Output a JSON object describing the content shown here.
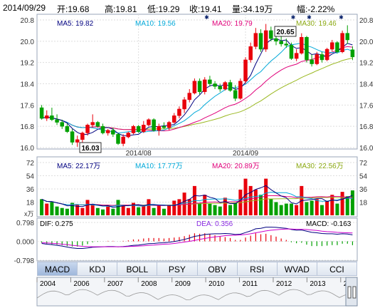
{
  "header": {
    "date": "2014/09/29",
    "open": "开:19.68",
    "high": "高:19.81",
    "low": "低:19.29",
    "close": "收:19.41",
    "volume": "量:34.19万",
    "change": "幅:-2.22%"
  },
  "ma_legend": {
    "ma5": "MA5: 19.82",
    "ma10": "MA10: 19.56",
    "ma20": "MA20: 19.79",
    "ma30": "MA30: 19.46"
  },
  "vol_legend": {
    "ma5": "MA5: 22.17万",
    "ma10": "MA10: 17.77万",
    "ma20": "MA20: 20.89万",
    "ma30": "MA30: 22.56万"
  },
  "macd_legend": {
    "dif": "DIF: 0.275",
    "dea": "DEA: 0.356",
    "macd": "MACD: -0.163"
  },
  "vol_unit": "x万",
  "annotations": {
    "high": "20.65",
    "low": "16.03"
  },
  "tabs": [
    "MACD",
    "KDJ",
    "BOLL",
    "PSY",
    "OBV",
    "RSI",
    "WVAD",
    "CCI"
  ],
  "active_tab": "MACD",
  "timeline_years": [
    "2004",
    "2006",
    "2007",
    "2008",
    "2009",
    "2010",
    "2011",
    "2012",
    "2013",
    "201"
  ],
  "colors": {
    "up": "#e8000b",
    "down": "#00a000",
    "ma5": "#000080",
    "ma10": "#00a8d8",
    "ma20": "#e0007a",
    "ma30": "#9ab820",
    "axis_text": "#333333",
    "grid": "#dddddd"
  },
  "chart_data": [
    {
      "type": "candlestick",
      "x_tick_labels": [
        "2014/08",
        "2014/09"
      ],
      "y_ticks": [
        "20.8",
        "20.0",
        "19.2",
        "18.4",
        "17.6",
        "16.8",
        "16.0"
      ],
      "ylim": [
        16.0,
        20.8
      ],
      "candles": [
        {
          "o": 17.5,
          "h": 17.6,
          "l": 17.05,
          "c": 17.1
        },
        {
          "o": 17.1,
          "h": 17.4,
          "l": 17.0,
          "c": 17.2
        },
        {
          "o": 17.2,
          "h": 17.5,
          "l": 17.0,
          "c": 17.05
        },
        {
          "o": 17.05,
          "h": 17.25,
          "l": 16.85,
          "c": 16.95
        },
        {
          "o": 16.95,
          "h": 17.05,
          "l": 16.7,
          "c": 16.8
        },
        {
          "o": 16.8,
          "h": 16.9,
          "l": 16.55,
          "c": 16.6
        },
        {
          "o": 16.6,
          "h": 16.7,
          "l": 16.1,
          "c": 16.2
        },
        {
          "o": 16.2,
          "h": 16.45,
          "l": 16.03,
          "c": 16.3
        },
        {
          "o": 16.3,
          "h": 16.6,
          "l": 16.2,
          "c": 16.55
        },
        {
          "o": 16.55,
          "h": 16.9,
          "l": 16.45,
          "c": 16.85
        },
        {
          "o": 16.85,
          "h": 17.25,
          "l": 16.75,
          "c": 16.95
        },
        {
          "o": 16.95,
          "h": 17.0,
          "l": 16.75,
          "c": 16.8
        },
        {
          "o": 16.8,
          "h": 16.9,
          "l": 16.5,
          "c": 16.55
        },
        {
          "o": 16.55,
          "h": 16.7,
          "l": 16.45,
          "c": 16.65
        },
        {
          "o": 16.65,
          "h": 16.75,
          "l": 16.4,
          "c": 16.5
        },
        {
          "o": 16.5,
          "h": 16.55,
          "l": 16.1,
          "c": 16.15
        },
        {
          "o": 16.15,
          "h": 16.5,
          "l": 16.05,
          "c": 16.4
        },
        {
          "o": 16.4,
          "h": 16.6,
          "l": 16.35,
          "c": 16.55
        },
        {
          "o": 16.55,
          "h": 16.85,
          "l": 16.5,
          "c": 16.8
        },
        {
          "o": 16.8,
          "h": 16.85,
          "l": 16.55,
          "c": 16.6
        },
        {
          "o": 16.6,
          "h": 17.0,
          "l": 16.55,
          "c": 16.85
        },
        {
          "o": 16.85,
          "h": 17.1,
          "l": 16.8,
          "c": 17.05
        },
        {
          "o": 17.05,
          "h": 17.1,
          "l": 16.6,
          "c": 16.65
        },
        {
          "o": 16.65,
          "h": 16.9,
          "l": 16.45,
          "c": 16.8
        },
        {
          "o": 16.8,
          "h": 16.95,
          "l": 16.7,
          "c": 16.75
        },
        {
          "o": 16.75,
          "h": 17.0,
          "l": 16.65,
          "c": 16.95
        },
        {
          "o": 16.95,
          "h": 17.3,
          "l": 16.9,
          "c": 17.2
        },
        {
          "o": 17.2,
          "h": 17.55,
          "l": 17.1,
          "c": 17.45
        },
        {
          "o": 17.45,
          "h": 17.9,
          "l": 17.3,
          "c": 17.8
        },
        {
          "o": 17.8,
          "h": 18.2,
          "l": 17.7,
          "c": 18.05
        },
        {
          "o": 18.05,
          "h": 18.6,
          "l": 18.0,
          "c": 18.5
        },
        {
          "o": 18.5,
          "h": 18.6,
          "l": 18.0,
          "c": 18.1
        },
        {
          "o": 18.1,
          "h": 18.65,
          "l": 18.0,
          "c": 18.55
        },
        {
          "o": 18.55,
          "h": 18.7,
          "l": 18.3,
          "c": 18.4
        },
        {
          "o": 18.4,
          "h": 18.5,
          "l": 18.2,
          "c": 18.3
        },
        {
          "o": 18.3,
          "h": 18.4,
          "l": 18.1,
          "c": 18.2
        },
        {
          "o": 18.2,
          "h": 18.5,
          "l": 18.15,
          "c": 18.45
        },
        {
          "o": 18.45,
          "h": 18.55,
          "l": 18.1,
          "c": 18.15
        },
        {
          "o": 18.15,
          "h": 18.35,
          "l": 17.75,
          "c": 17.85
        },
        {
          "o": 17.85,
          "h": 18.6,
          "l": 17.8,
          "c": 18.5
        },
        {
          "o": 18.5,
          "h": 19.4,
          "l": 18.4,
          "c": 19.3
        },
        {
          "o": 19.3,
          "h": 19.95,
          "l": 19.2,
          "c": 19.8
        },
        {
          "o": 19.8,
          "h": 20.5,
          "l": 19.7,
          "c": 20.3
        },
        {
          "o": 20.3,
          "h": 20.45,
          "l": 19.6,
          "c": 19.7
        },
        {
          "o": 19.7,
          "h": 20.65,
          "l": 19.6,
          "c": 20.4
        },
        {
          "o": 20.4,
          "h": 20.55,
          "l": 20.0,
          "c": 20.1
        },
        {
          "o": 20.1,
          "h": 20.3,
          "l": 19.85,
          "c": 20.0
        },
        {
          "o": 20.0,
          "h": 20.2,
          "l": 19.8,
          "c": 19.9
        },
        {
          "o": 19.9,
          "h": 20.1,
          "l": 19.75,
          "c": 19.85
        },
        {
          "o": 19.85,
          "h": 19.95,
          "l": 19.3,
          "c": 19.35
        },
        {
          "o": 19.35,
          "h": 19.7,
          "l": 19.25,
          "c": 19.55
        },
        {
          "o": 19.55,
          "h": 20.3,
          "l": 19.5,
          "c": 20.15
        },
        {
          "o": 20.15,
          "h": 20.2,
          "l": 19.2,
          "c": 19.3
        },
        {
          "o": 19.3,
          "h": 19.5,
          "l": 19.05,
          "c": 19.15
        },
        {
          "o": 19.15,
          "h": 19.6,
          "l": 19.1,
          "c": 19.5
        },
        {
          "o": 19.5,
          "h": 19.6,
          "l": 19.2,
          "c": 19.3
        },
        {
          "o": 19.3,
          "h": 19.75,
          "l": 19.25,
          "c": 19.7
        },
        {
          "o": 19.7,
          "h": 20.05,
          "l": 19.6,
          "c": 19.95
        },
        {
          "o": 19.95,
          "h": 20.0,
          "l": 19.55,
          "c": 19.6
        },
        {
          "o": 19.6,
          "h": 20.4,
          "l": 19.55,
          "c": 20.3
        },
        {
          "o": 20.3,
          "h": 20.6,
          "l": 19.9,
          "c": 20.05
        },
        {
          "o": 19.68,
          "h": 19.81,
          "l": 19.29,
          "c": 19.41
        }
      ]
    },
    {
      "type": "bar",
      "y_ticks": [
        "72",
        "54",
        "36",
        "18"
      ],
      "ylim": [
        0,
        72
      ],
      "values": [
        22,
        16,
        18,
        12,
        10,
        9,
        17,
        14,
        10,
        21,
        15,
        10,
        8,
        12,
        9,
        21,
        14,
        10,
        17,
        11,
        14,
        22,
        10,
        13,
        9,
        14,
        20,
        22,
        31,
        22,
        40,
        17,
        28,
        16,
        14,
        12,
        24,
        14,
        17,
        35,
        50,
        40,
        35,
        28,
        50,
        22,
        18,
        14,
        16,
        16,
        14,
        40,
        18,
        20,
        22,
        14,
        20,
        28,
        16,
        32,
        26,
        34
      ]
    },
    {
      "type": "bar",
      "y_ticks": [
        "0.798",
        "0.000",
        "-0.798"
      ],
      "ylim": [
        -0.798,
        0.798
      ],
      "dif": [
        -0.09,
        -0.12,
        -0.14,
        -0.17,
        -0.2,
        -0.24,
        -0.28,
        -0.3,
        -0.3,
        -0.28,
        -0.25,
        -0.24,
        -0.23,
        -0.22,
        -0.22,
        -0.23,
        -0.22,
        -0.2,
        -0.17,
        -0.16,
        -0.13,
        -0.1,
        -0.09,
        -0.07,
        -0.06,
        -0.04,
        -0.01,
        0.03,
        0.08,
        0.14,
        0.21,
        0.24,
        0.29,
        0.31,
        0.32,
        0.32,
        0.33,
        0.32,
        0.29,
        0.3,
        0.37,
        0.44,
        0.53,
        0.55,
        0.6,
        0.6,
        0.59,
        0.57,
        0.55,
        0.5,
        0.47,
        0.48,
        0.43,
        0.38,
        0.36,
        0.33,
        0.32,
        0.32,
        0.3,
        0.32,
        0.31,
        0.275
      ],
      "dea": [
        -0.06,
        -0.07,
        -0.08,
        -0.1,
        -0.12,
        -0.14,
        -0.17,
        -0.19,
        -0.21,
        -0.22,
        -0.23,
        -0.23,
        -0.23,
        -0.23,
        -0.23,
        -0.23,
        -0.23,
        -0.22,
        -0.21,
        -0.2,
        -0.19,
        -0.17,
        -0.16,
        -0.14,
        -0.12,
        -0.11,
        -0.09,
        -0.06,
        -0.03,
        0.0,
        0.04,
        0.08,
        0.12,
        0.16,
        0.19,
        0.21,
        0.24,
        0.25,
        0.26,
        0.27,
        0.29,
        0.32,
        0.36,
        0.4,
        0.44,
        0.47,
        0.49,
        0.51,
        0.52,
        0.52,
        0.51,
        0.51,
        0.5,
        0.48,
        0.46,
        0.43,
        0.41,
        0.4,
        0.38,
        0.37,
        0.36,
        0.356
      ]
    }
  ]
}
